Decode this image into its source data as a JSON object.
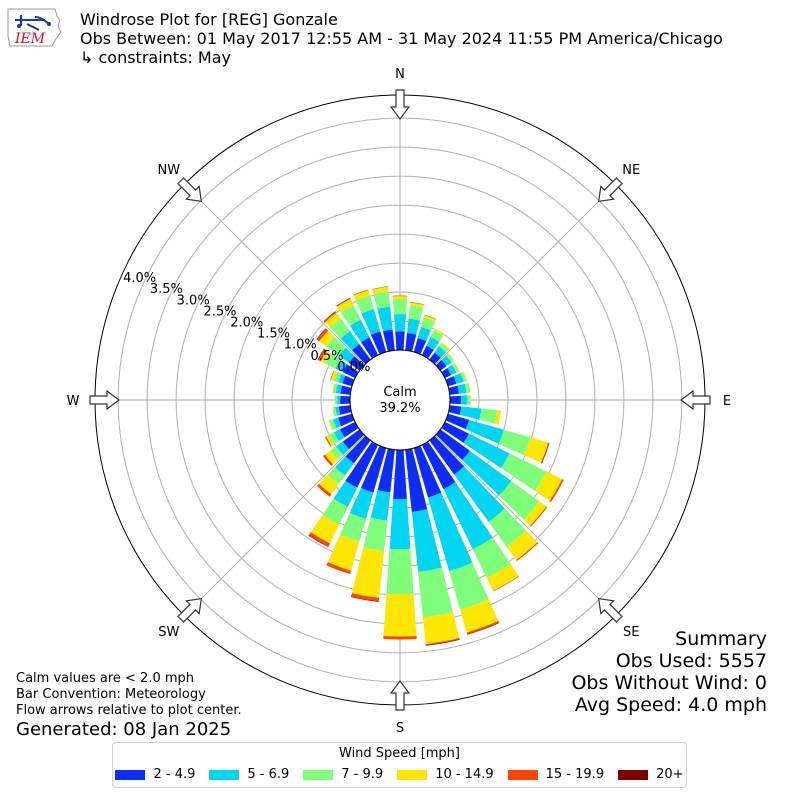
{
  "header": {
    "title": "Windrose Plot for [REG] Gonzale",
    "subtitle": "Obs Between: 01 May 2017 12:55 AM - 31 May 2024 11:55 PM America/Chicago",
    "constraint": "↳ constraints: May"
  },
  "logo": {
    "text": "IEM",
    "icon": "iem-logo-icon"
  },
  "summary": {
    "heading": "Summary",
    "obs_used": "Obs Used: 5557",
    "obs_without_wind": "Obs Without Wind: 0",
    "avg_speed": "Avg Speed: 4.0 mph"
  },
  "notes": {
    "calm": "Calm values are < 2.0 mph",
    "convention": "Bar Convention: Meteorology",
    "flow": "Flow arrows relative to plot center."
  },
  "generated": "Generated: 08 Jan 2025",
  "legend": {
    "title": "Wind Speed [mph]",
    "items": [
      {
        "label": "2 - 4.9",
        "color": "#0d2cf6"
      },
      {
        "label": "5 - 6.9",
        "color": "#00d5f2"
      },
      {
        "label": "7 - 9.9",
        "color": "#7efe7a"
      },
      {
        "label": "10 - 14.9",
        "color": "#ffe600"
      },
      {
        "label": "15 - 19.9",
        "color": "#ff4500"
      },
      {
        "label": "20+",
        "color": "#800000"
      }
    ]
  },
  "chart_data": {
    "type": "windrose",
    "calm_label": "Calm",
    "calm_value": "39.2%",
    "calm_percent": 39.2,
    "rmax": 4.4,
    "radial_ticks": [
      0.0,
      0.5,
      1.0,
      1.5,
      2.0,
      2.5,
      3.0,
      3.5,
      4.0
    ],
    "radial_tick_labels": [
      "0.0%",
      "0.5%",
      "1.0%",
      "1.5%",
      "2.0%",
      "2.5%",
      "3.0%",
      "3.5%",
      "4.0%"
    ],
    "compass_labels": [
      "N",
      "NE",
      "E",
      "SE",
      "S",
      "SW",
      "W",
      "NW"
    ],
    "speed_bins": [
      "2 - 4.9",
      "5 - 6.9",
      "7 - 9.9",
      "10 - 14.9",
      "15 - 19.9",
      "20+"
    ],
    "directions": [
      0,
      10,
      20,
      30,
      40,
      50,
      60,
      70,
      80,
      90,
      100,
      110,
      120,
      130,
      140,
      150,
      160,
      170,
      180,
      190,
      200,
      210,
      220,
      230,
      240,
      250,
      260,
      270,
      280,
      290,
      300,
      310,
      320,
      330,
      340,
      350
    ],
    "cumulative": [
      [
        0.32,
        0.62,
        0.88,
        0.93,
        0.94,
        0.94
      ],
      [
        0.3,
        0.55,
        0.78,
        0.83,
        0.84,
        0.84
      ],
      [
        0.25,
        0.45,
        0.62,
        0.66,
        0.67,
        0.67
      ],
      [
        0.18,
        0.35,
        0.48,
        0.51,
        0.51,
        0.51
      ],
      [
        0.15,
        0.28,
        0.35,
        0.37,
        0.37,
        0.37
      ],
      [
        0.13,
        0.24,
        0.29,
        0.3,
        0.3,
        0.3
      ],
      [
        0.12,
        0.22,
        0.27,
        0.28,
        0.28,
        0.28
      ],
      [
        0.15,
        0.28,
        0.33,
        0.34,
        0.34,
        0.34
      ],
      [
        0.16,
        0.29,
        0.35,
        0.36,
        0.36,
        0.36
      ],
      [
        0.19,
        0.3,
        0.35,
        0.36,
        0.36,
        0.36
      ],
      [
        0.2,
        0.55,
        0.82,
        0.89,
        0.89,
        0.89
      ],
      [
        0.38,
        1.0,
        1.48,
        1.8,
        1.81,
        1.82
      ],
      [
        0.46,
        1.24,
        1.95,
        2.25,
        2.28,
        2.28
      ],
      [
        0.63,
        1.51,
        2.11,
        2.26,
        2.28,
        2.28
      ],
      [
        0.73,
        1.74,
        2.27,
        2.55,
        2.57,
        2.57
      ],
      [
        0.85,
        2.0,
        2.55,
        2.8,
        2.81,
        2.81
      ],
      [
        0.89,
        2.21,
        2.9,
        3.31,
        3.34,
        3.35
      ],
      [
        1.08,
        2.12,
        2.91,
        3.37,
        3.39,
        3.4
      ],
      [
        0.85,
        1.71,
        2.49,
        3.22,
        3.27,
        3.27
      ],
      [
        0.74,
        1.23,
        1.76,
        2.57,
        2.63,
        2.64
      ],
      [
        0.8,
        1.27,
        1.68,
        2.2,
        2.26,
        2.26
      ],
      [
        0.82,
        1.19,
        1.53,
        1.89,
        1.95,
        1.96
      ],
      [
        0.49,
        0.75,
        0.93,
        1.15,
        1.2,
        1.2
      ],
      [
        0.36,
        0.5,
        0.62,
        0.74,
        0.78,
        0.78
      ],
      [
        0.29,
        0.41,
        0.51,
        0.56,
        0.58,
        0.58
      ],
      [
        0.25,
        0.34,
        0.4,
        0.42,
        0.42,
        0.42
      ],
      [
        0.2,
        0.26,
        0.3,
        0.31,
        0.31,
        0.31
      ],
      [
        0.17,
        0.22,
        0.26,
        0.26,
        0.26,
        0.26
      ],
      [
        0.17,
        0.25,
        0.3,
        0.31,
        0.31,
        0.31
      ],
      [
        0.17,
        0.25,
        0.33,
        0.38,
        0.39,
        0.39
      ],
      [
        0.24,
        0.38,
        0.57,
        0.66,
        0.71,
        0.72
      ],
      [
        0.23,
        0.44,
        0.71,
        0.86,
        0.91,
        0.92
      ],
      [
        0.33,
        0.61,
        0.88,
        1.0,
        1.02,
        1.03
      ],
      [
        0.34,
        0.68,
        0.96,
        1.08,
        1.09,
        1.1
      ],
      [
        0.37,
        0.77,
        1.01,
        1.11,
        1.12,
        1.12
      ],
      [
        0.36,
        0.76,
        1.02,
        1.1,
        1.11,
        1.11
      ]
    ]
  }
}
